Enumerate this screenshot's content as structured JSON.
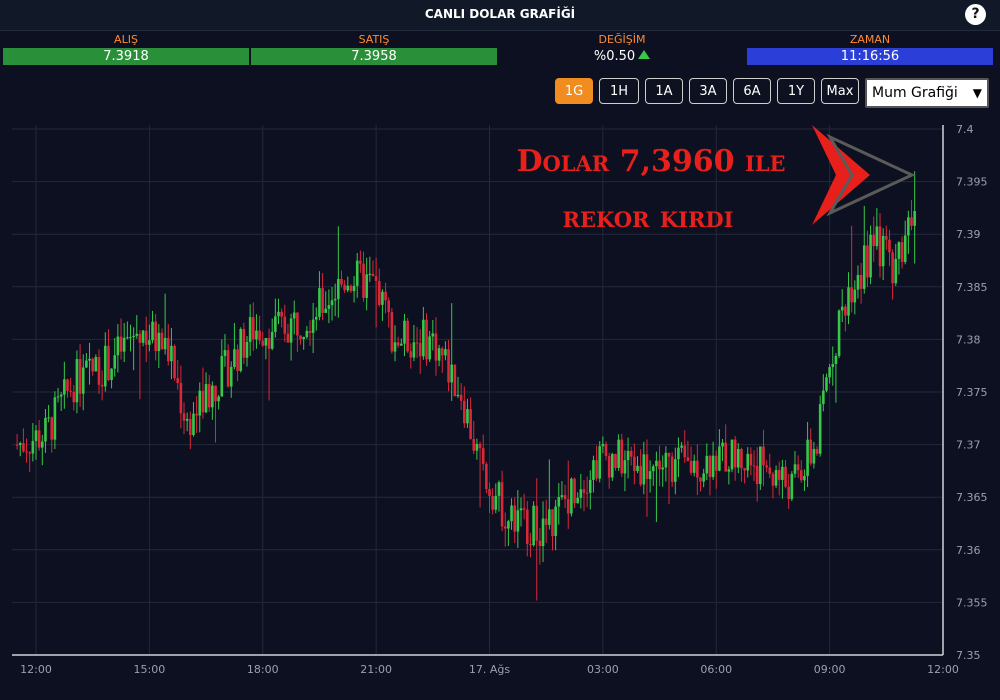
{
  "header": {
    "title": "CANLI DOLAR GRAFİĞİ",
    "help_label": "?"
  },
  "quotes": {
    "alis": {
      "label": "ALIŞ",
      "value": "7.3918"
    },
    "satis": {
      "label": "SATIŞ",
      "value": "7.3958"
    },
    "degisim": {
      "label": "DEĞİŞİM",
      "value": "%0.50"
    },
    "zaman": {
      "label": "ZAMAN",
      "value": "11:16:56"
    }
  },
  "range_buttons": [
    "1G",
    "1H",
    "1A",
    "3A",
    "6A",
    "1Y",
    "Max"
  ],
  "active_range": "1G",
  "chart_type_select": {
    "selected": "Mum Grafiği"
  },
  "annotation": {
    "line1": "Dolar 7,3960 ile",
    "line2": "rekor kırdı",
    "color": "#e8201c"
  },
  "colors": {
    "up": "#37c84a",
    "down": "#d9283a",
    "grid": "#23293a",
    "axis_text": "#9aa0ab",
    "buy_bg": "#2a8f39",
    "time_bg": "#2b3ed8",
    "label_orange": "#ff8a33"
  },
  "chart_data": {
    "type": "candlestick",
    "title": "",
    "ylim": [
      7.35,
      7.4
    ],
    "y_ticks": [
      "7.4",
      "7.395",
      "7.39",
      "7.385",
      "7.38",
      "7.375",
      "7.37",
      "7.365",
      "7.36",
      "7.355",
      "7.35"
    ],
    "x_ticks": [
      "12:00",
      "15:00",
      "18:00",
      "21:00",
      "17. Ağs",
      "03:00",
      "06:00",
      "09:00",
      "12:00"
    ],
    "x_start": "16 Aug 11:30",
    "x_end": "17 Aug 11:17",
    "close_path": [
      {
        "time": "16 Aug 11:30",
        "value": 7.37
      },
      {
        "time": "16 Aug 12:15",
        "value": 7.371
      },
      {
        "time": "16 Aug 13:00",
        "value": 7.376
      },
      {
        "time": "16 Aug 14:00",
        "value": 7.378
      },
      {
        "time": "16 Aug 14:45",
        "value": 7.381
      },
      {
        "time": "16 Aug 15:30",
        "value": 7.379
      },
      {
        "time": "16 Aug 16:00",
        "value": 7.372
      },
      {
        "time": "16 Aug 17:00",
        "value": 7.377
      },
      {
        "time": "16 Aug 17:45",
        "value": 7.381
      },
      {
        "time": "16 Aug 18:30",
        "value": 7.381
      },
      {
        "time": "16 Aug 19:30",
        "value": 7.383
      },
      {
        "time": "16 Aug 20:15",
        "value": 7.386
      },
      {
        "time": "16 Aug 21:00",
        "value": 7.385
      },
      {
        "time": "16 Aug 21:30",
        "value": 7.38
      },
      {
        "time": "16 Aug 22:30",
        "value": 7.38
      },
      {
        "time": "16 Aug 23:15",
        "value": 7.375
      },
      {
        "time": "16 Aug 23:45",
        "value": 7.368
      },
      {
        "time": "17 Aug 00:30",
        "value": 7.363
      },
      {
        "time": "17 Aug 01:30",
        "value": 7.362
      },
      {
        "time": "17 Aug 02:15",
        "value": 7.366
      },
      {
        "time": "17 Aug 03:00",
        "value": 7.369
      },
      {
        "time": "17 Aug 04:00",
        "value": 7.368
      },
      {
        "time": "17 Aug 05:15",
        "value": 7.368
      },
      {
        "time": "17 Aug 06:15",
        "value": 7.369
      },
      {
        "time": "17 Aug 07:15",
        "value": 7.368
      },
      {
        "time": "17 Aug 08:00",
        "value": 7.366
      },
      {
        "time": "17 Aug 08:40",
        "value": 7.37
      },
      {
        "time": "17 Aug 09:00",
        "value": 7.378
      },
      {
        "time": "17 Aug 09:30",
        "value": 7.385
      },
      {
        "time": "17 Aug 10:15",
        "value": 7.389
      },
      {
        "time": "17 Aug 10:45",
        "value": 7.387
      },
      {
        "time": "17 Aug 11:17",
        "value": 7.394
      }
    ]
  }
}
